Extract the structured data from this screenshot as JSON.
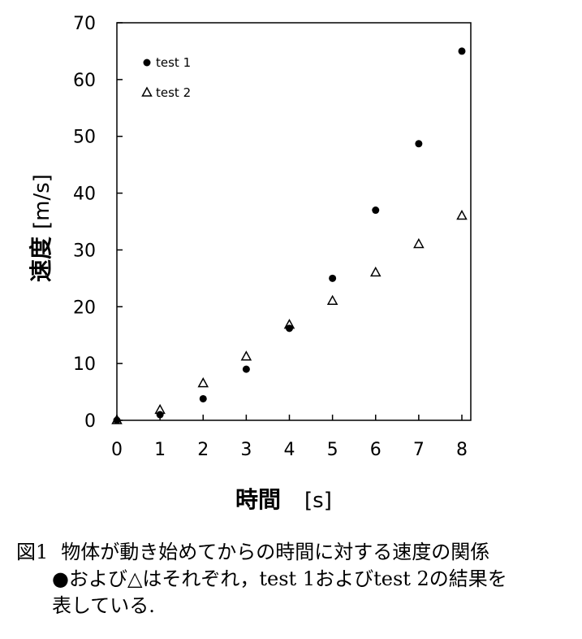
{
  "chart_data": {
    "type": "scatter",
    "title": "",
    "xlabel": "時間",
    "xunit": "[s]",
    "ylabel": "速度",
    "yunit": "[m/s]",
    "xlim": [
      0,
      8
    ],
    "ylim": [
      0,
      70
    ],
    "xticks": [
      0,
      1,
      2,
      3,
      4,
      5,
      6,
      7,
      8
    ],
    "yticks": [
      0,
      10,
      20,
      30,
      40,
      50,
      60,
      70
    ],
    "grid": false,
    "legend": "top-left",
    "series": [
      {
        "name": "test 1",
        "marker": "filled-circle",
        "color": "#000000",
        "x": [
          0,
          1,
          2,
          3,
          4,
          5,
          6,
          7,
          8
        ],
        "y": [
          0,
          1,
          3.8,
          9,
          16.2,
          25,
          37,
          48.7,
          65
        ]
      },
      {
        "name": "test 2",
        "marker": "open-triangle",
        "color": "#000000",
        "x": [
          0,
          1,
          2,
          3,
          4,
          5,
          6,
          7,
          8
        ],
        "y": [
          0,
          1.8,
          6.5,
          11.2,
          16.8,
          21,
          26,
          31,
          36
        ]
      }
    ]
  },
  "caption": {
    "label": "図1",
    "line1": "物体が動き始めてからの時間に対する速度の関係",
    "line2": "●および△はそれぞれ，test 1およびtest 2の結果を",
    "line3": "表している."
  }
}
